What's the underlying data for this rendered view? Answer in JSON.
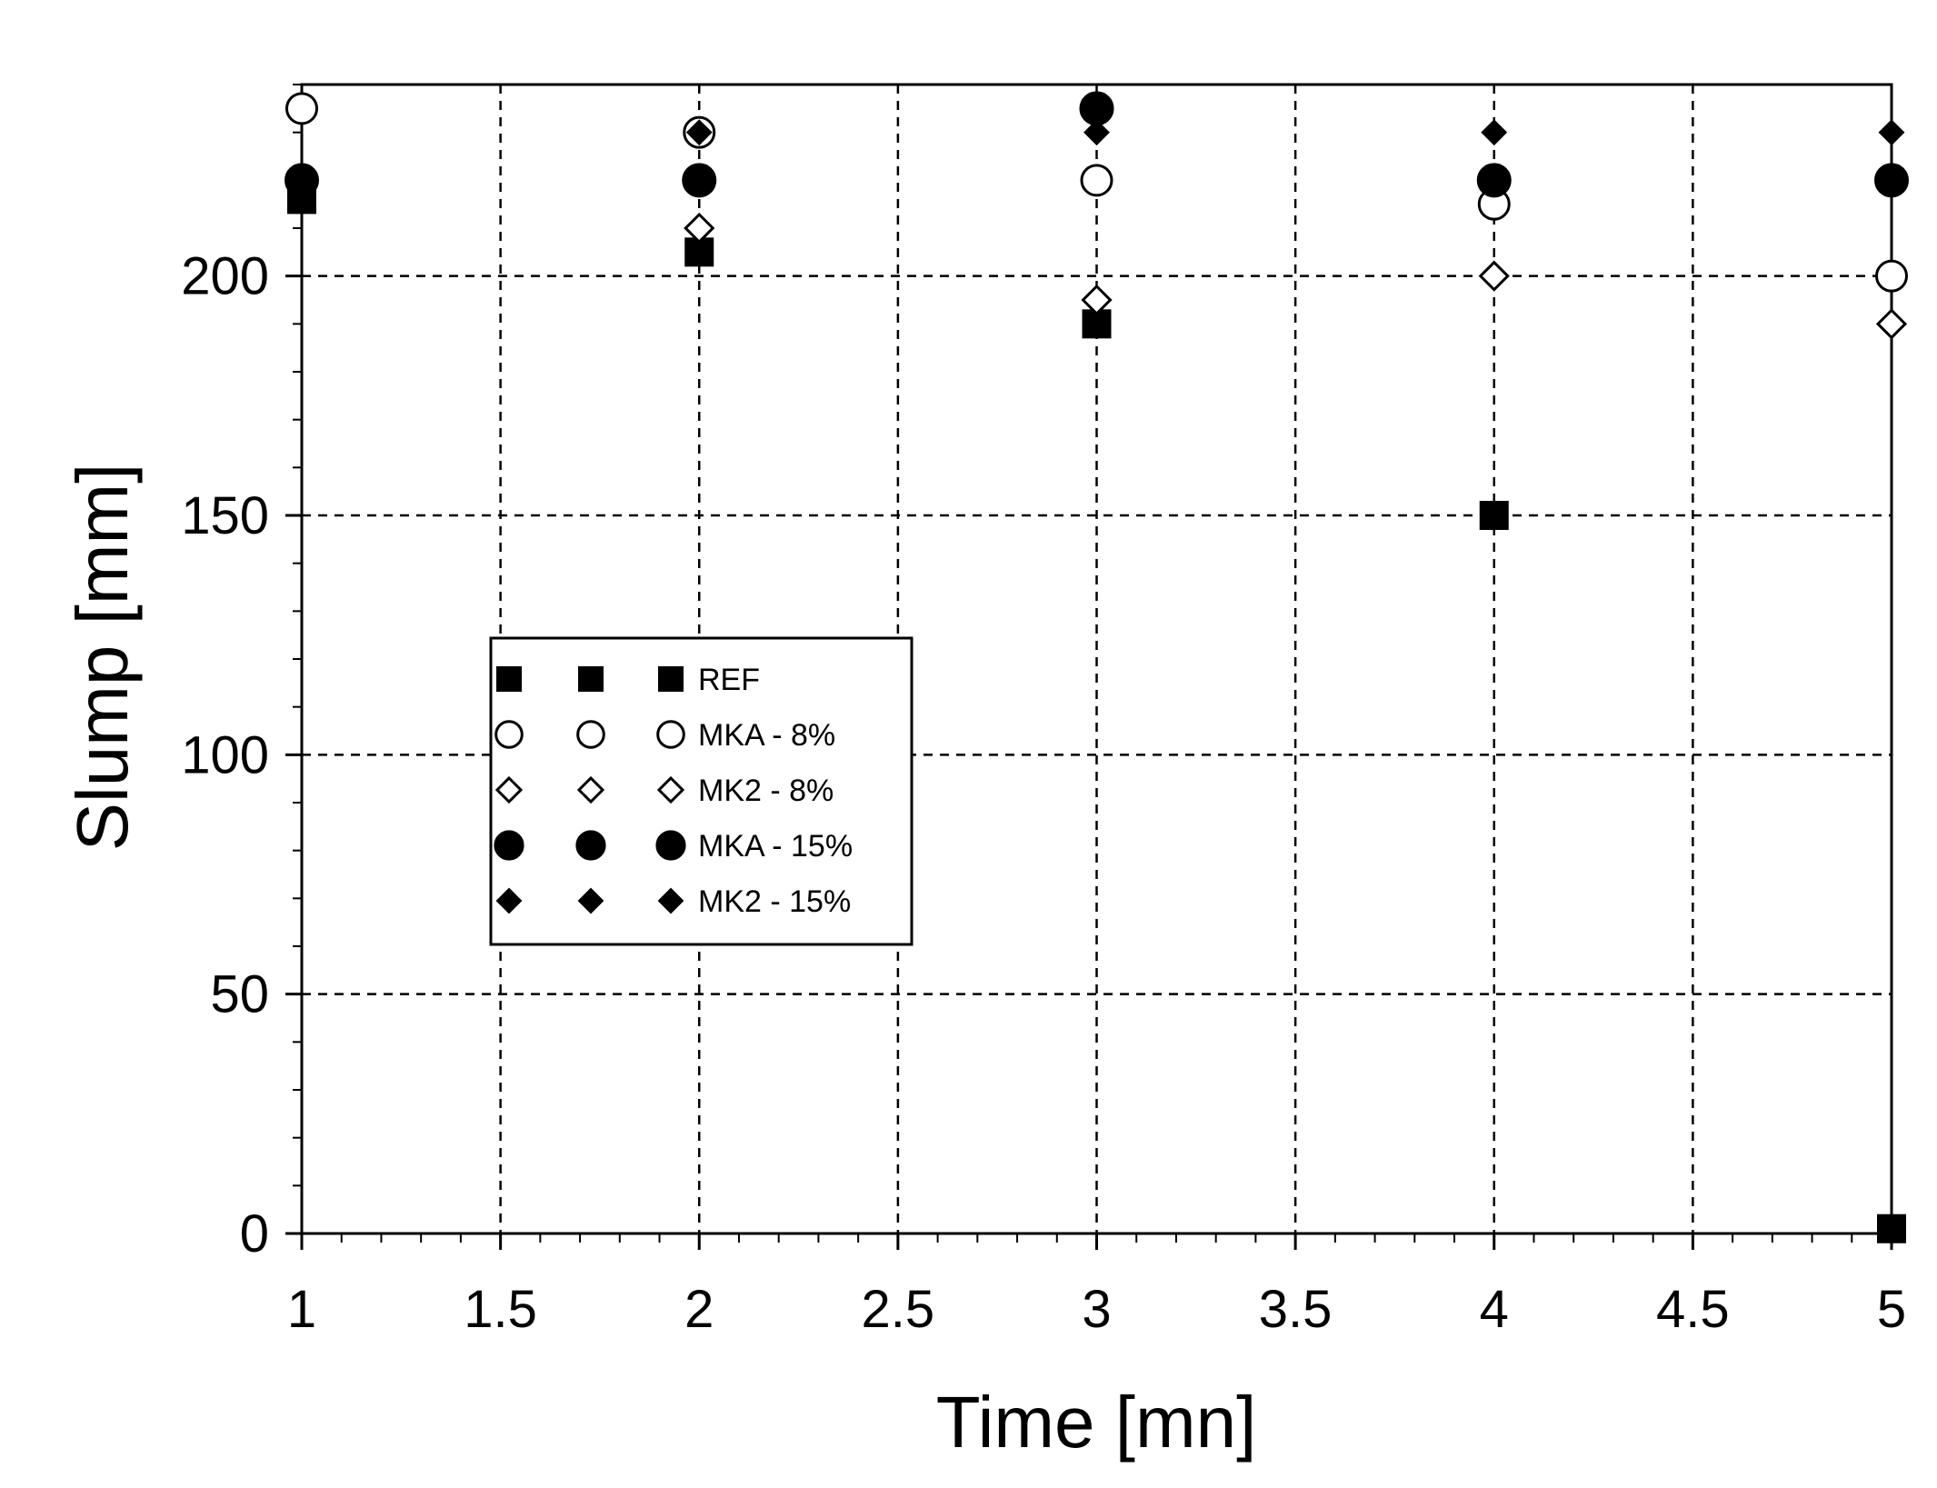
{
  "chart_data": {
    "type": "scatter",
    "xlabel": "Time [mn]",
    "ylabel": "Slump [mm]",
    "xlim": [
      1,
      5
    ],
    "ylim": [
      0,
      240
    ],
    "xticks": [
      "1",
      "1.5",
      "2",
      "2.5",
      "3",
      "3.5",
      "4",
      "4.5",
      "5"
    ],
    "yticks": [
      "0",
      "50",
      "100",
      "150",
      "200"
    ],
    "grid": true,
    "legend_position": "center-left",
    "series": [
      {
        "name": "REF",
        "marker": "square-filled",
        "x": [
          1,
          2,
          3,
          4,
          5
        ],
        "y": [
          216,
          205,
          190,
          150,
          1
        ]
      },
      {
        "name": "MKA - 8%",
        "marker": "circle-open",
        "x": [
          1,
          2,
          3,
          4,
          5
        ],
        "y": [
          235,
          230,
          220,
          215,
          200
        ]
      },
      {
        "name": "MK2 - 8%",
        "marker": "diamond-open",
        "x": [
          1,
          2,
          3,
          4,
          5
        ],
        "y": [
          220,
          210,
          195,
          200,
          190
        ]
      },
      {
        "name": "MKA - 15%",
        "marker": "circle-filled",
        "x": [
          1,
          2,
          3,
          4,
          5
        ],
        "y": [
          220,
          220,
          235,
          220,
          220
        ]
      },
      {
        "name": "MK2 - 15%",
        "marker": "diamond-filled",
        "x": [
          1,
          2,
          3,
          4,
          5
        ],
        "y": [
          220,
          230,
          230,
          230,
          230
        ]
      }
    ]
  }
}
